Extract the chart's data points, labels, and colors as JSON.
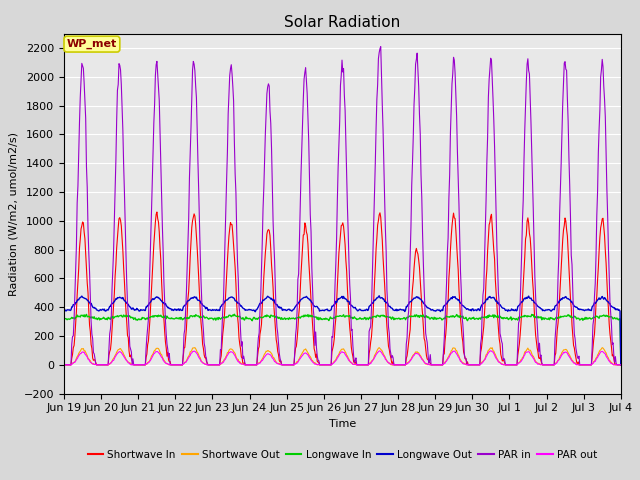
{
  "title": "Solar Radiation",
  "ylabel": "Radiation (W/m2, umol/m2/s)",
  "xlabel": "Time",
  "ylim": [
    -200,
    2300
  ],
  "fig_bg_color": "#d8d8d8",
  "plot_bg_color": "#e8e8e8",
  "station_label": "WP_met",
  "xtick_labels": [
    "Jun 19",
    "Jun 20",
    "Jun 21",
    "Jun 22",
    "Jun 23",
    "Jun 24",
    "Jun 25",
    "Jun 26",
    "Jun 27",
    "Jun 28",
    "Jun 29",
    "Jun 30",
    "Jul 1",
    "Jul 2",
    "Jul 3",
    "Jul 4"
  ],
  "n_days": 15,
  "shortwave_in_color": "#ff0000",
  "shortwave_out_color": "#ffa500",
  "longwave_in_color": "#00cc00",
  "longwave_out_color": "#0000cc",
  "par_in_color": "#9900cc",
  "par_out_color": "#ff00ff",
  "legend_entries": [
    "Shortwave In",
    "Shortwave Out",
    "Longwave In",
    "Longwave Out",
    "PAR in",
    "PAR out"
  ],
  "yticks": [
    -200,
    0,
    200,
    400,
    600,
    800,
    1000,
    1200,
    1400,
    1600,
    1800,
    2000,
    2200
  ]
}
